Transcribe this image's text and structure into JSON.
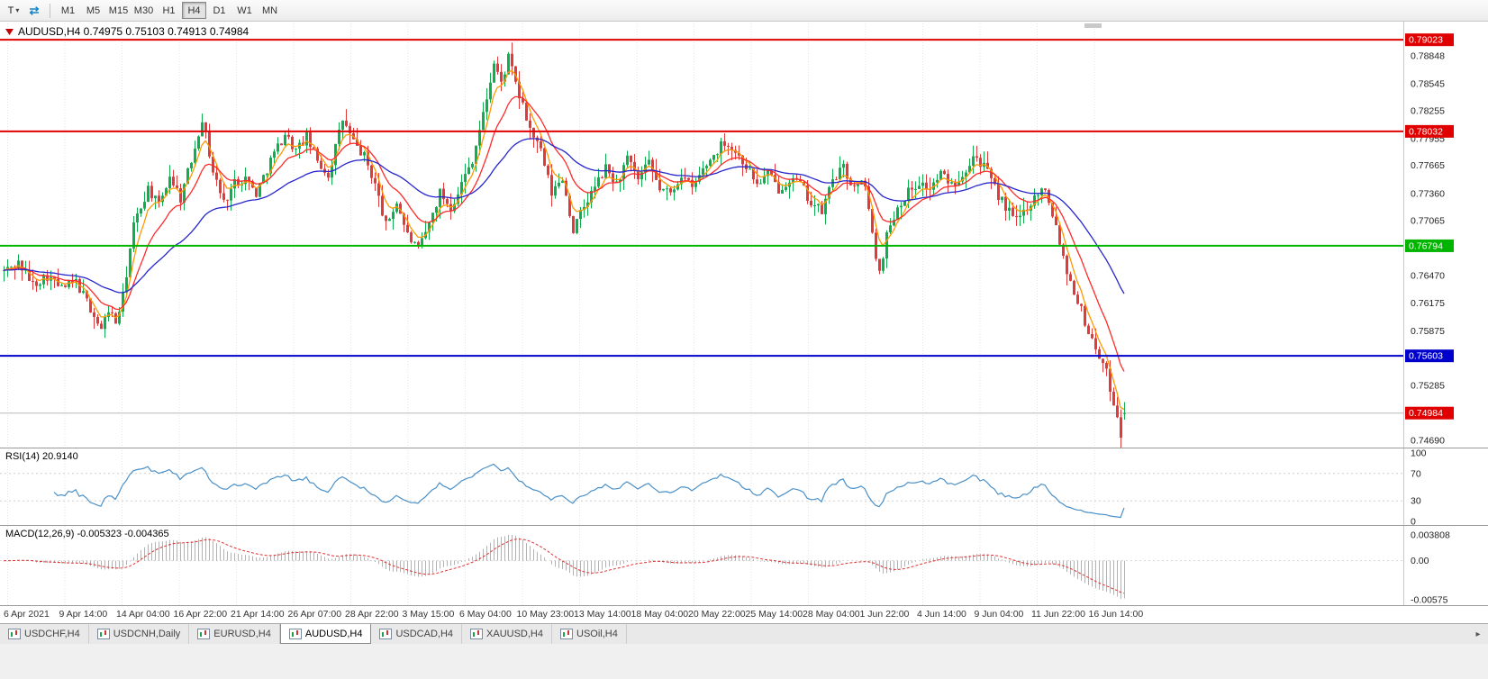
{
  "toolbar": {
    "tool_button_label": "T",
    "timeframes": [
      "M1",
      "M5",
      "M15",
      "M30",
      "H1",
      "H4",
      "D1",
      "W1",
      "MN"
    ],
    "active_timeframe": "H4"
  },
  "tabs": {
    "items": [
      "USDCHF,H4",
      "USDCNH,Daily",
      "EURUSD,H4",
      "AUDUSD,H4",
      "USDCAD,H4",
      "XAUUSD,H4",
      "USOil,H4"
    ],
    "active": "AUDUSD,H4",
    "scroll_right": "▸"
  },
  "chart_data": {
    "type": "candlestick",
    "symbol": "AUDUSD",
    "timeframe": "H4",
    "title": "AUDUSD,H4",
    "ohlc_text": "0.74975 0.75103 0.74913 0.74984",
    "last_bar": {
      "open": 0.74975,
      "high": 0.75103,
      "low": 0.74913,
      "close": 0.74984
    },
    "bar_count": 312,
    "price_axis": {
      "ticks": [
        0.78848,
        0.78545,
        0.78255,
        0.77955,
        0.77665,
        0.7736,
        0.77065,
        0.7647,
        0.76175,
        0.75875,
        0.75285,
        0.7469
      ],
      "top_price": 0.792,
      "bottom_price": 0.7464
    },
    "x_labels": [
      "6 Apr 2021",
      "9 Apr 14:00",
      "14 Apr 04:00",
      "16 Apr 22:00",
      "21 Apr 14:00",
      "26 Apr 07:00",
      "28 Apr 22:00",
      "3 May 15:00",
      "6 May 04:00",
      "10 May 23:00",
      "13 May 14:00",
      "18 May 04:00",
      "20 May 22:00",
      "25 May 14:00",
      "28 May 04:00",
      "1 Jun 22:00",
      "4 Jun 14:00",
      "9 Jun 04:00",
      "11 Jun 22:00",
      "16 Jun 14:00"
    ],
    "horizontal_lines": [
      {
        "value": 0.79023,
        "label": "0.79023",
        "color": "#e00000"
      },
      {
        "value": 0.78032,
        "label": "0.78032",
        "color": "#e00000"
      },
      {
        "value": 0.76794,
        "label": "0.76794",
        "color": "#00b400"
      },
      {
        "value": 0.75603,
        "label": "0.75603",
        "color": "#0000cd"
      }
    ],
    "current_price": {
      "value": 0.74984,
      "label": "0.74984",
      "color": "#e00000",
      "line_color": "#b8b8b8"
    },
    "candle_colors": {
      "up": "#0fae4e",
      "down": "#e23a3a"
    },
    "moving_averages": [
      {
        "period": 5,
        "color": "#ff9900"
      },
      {
        "period": 13,
        "color": "#ff2a2a"
      },
      {
        "period": 40,
        "color": "#2626cc"
      }
    ],
    "price_anchors": [
      [
        0,
        0.7652
      ],
      [
        4,
        0.7661
      ],
      [
        8,
        0.7638
      ],
      [
        12,
        0.7647
      ],
      [
        16,
        0.7633
      ],
      [
        20,
        0.764
      ],
      [
        24,
        0.7612
      ],
      [
        27,
        0.7588
      ],
      [
        29,
        0.7611
      ],
      [
        31,
        0.7596
      ],
      [
        33,
        0.7624
      ],
      [
        36,
        0.7701
      ],
      [
        40,
        0.7742
      ],
      [
        43,
        0.7722
      ],
      [
        46,
        0.7756
      ],
      [
        49,
        0.7731
      ],
      [
        52,
        0.7772
      ],
      [
        55,
        0.7818
      ],
      [
        58,
        0.776
      ],
      [
        61,
        0.7726
      ],
      [
        64,
        0.7748
      ],
      [
        67,
        0.7753
      ],
      [
        70,
        0.7736
      ],
      [
        74,
        0.7772
      ],
      [
        78,
        0.7801
      ],
      [
        81,
        0.7782
      ],
      [
        84,
        0.7797
      ],
      [
        87,
        0.7771
      ],
      [
        90,
        0.7756
      ],
      [
        94,
        0.7816
      ],
      [
        97,
        0.7791
      ],
      [
        100,
        0.7776
      ],
      [
        103,
        0.7746
      ],
      [
        106,
        0.7701
      ],
      [
        109,
        0.7727
      ],
      [
        112,
        0.7691
      ],
      [
        115,
        0.7674
      ],
      [
        118,
        0.7703
      ],
      [
        121,
        0.7737
      ],
      [
        124,
        0.7721
      ],
      [
        127,
        0.7747
      ],
      [
        130,
        0.7773
      ],
      [
        133,
        0.7821
      ],
      [
        136,
        0.7877
      ],
      [
        138,
        0.7855
      ],
      [
        140,
        0.7883
      ],
      [
        143,
        0.7841
      ],
      [
        146,
        0.7806
      ],
      [
        149,
        0.7781
      ],
      [
        152,
        0.7736
      ],
      [
        155,
        0.7753
      ],
      [
        158,
        0.7696
      ],
      [
        161,
        0.7722
      ],
      [
        164,
        0.7743
      ],
      [
        167,
        0.7763
      ],
      [
        170,
        0.7746
      ],
      [
        173,
        0.7773
      ],
      [
        176,
        0.7751
      ],
      [
        179,
        0.7768
      ],
      [
        182,
        0.7741
      ],
      [
        185,
        0.7736
      ],
      [
        188,
        0.7757
      ],
      [
        191,
        0.7741
      ],
      [
        194,
        0.7762
      ],
      [
        197,
        0.7778
      ],
      [
        200,
        0.7793
      ],
      [
        203,
        0.7781
      ],
      [
        206,
        0.7766
      ],
      [
        209,
        0.7746
      ],
      [
        212,
        0.7757
      ],
      [
        215,
        0.7741
      ],
      [
        218,
        0.7752
      ],
      [
        221,
        0.7746
      ],
      [
        224,
        0.7726
      ],
      [
        227,
        0.7716
      ],
      [
        230,
        0.7752
      ],
      [
        233,
        0.7763
      ],
      [
        236,
        0.7741
      ],
      [
        239,
        0.7748
      ],
      [
        241,
        0.7689
      ],
      [
        243,
        0.7651
      ],
      [
        245,
        0.7691
      ],
      [
        248,
        0.7722
      ],
      [
        251,
        0.7738
      ],
      [
        254,
        0.7748
      ],
      [
        257,
        0.7741
      ],
      [
        260,
        0.7757
      ],
      [
        263,
        0.7746
      ],
      [
        266,
        0.7757
      ],
      [
        269,
        0.7778
      ],
      [
        272,
        0.7766
      ],
      [
        275,
        0.7741
      ],
      [
        278,
        0.7721
      ],
      [
        281,
        0.7706
      ],
      [
        284,
        0.7722
      ],
      [
        287,
        0.7737
      ],
      [
        289,
        0.7743
      ],
      [
        292,
        0.7701
      ],
      [
        295,
        0.7652
      ],
      [
        298,
        0.7621
      ],
      [
        301,
        0.7586
      ],
      [
        304,
        0.7561
      ],
      [
        306,
        0.7541
      ],
      [
        308,
        0.7511
      ],
      [
        310,
        0.7477
      ],
      [
        311,
        0.74984
      ]
    ],
    "indicators": {
      "rsi": {
        "label": "RSI(14)",
        "value": "20.9140",
        "period": 14,
        "levels": [
          100,
          70,
          30,
          0
        ],
        "color": "#4a90c8"
      },
      "macd": {
        "label": "MACD(12,26,9)",
        "value": "-0.005323 -0.004365",
        "fast": 12,
        "slow": 26,
        "signal_period": 9,
        "axis_labels": [
          "0.003808",
          "0.00",
          "-0.00575"
        ],
        "axis_values": [
          0.003808,
          0,
          -0.00575
        ],
        "histogram_color": "#b2b2b2",
        "signal_color": "#e03030"
      }
    }
  }
}
